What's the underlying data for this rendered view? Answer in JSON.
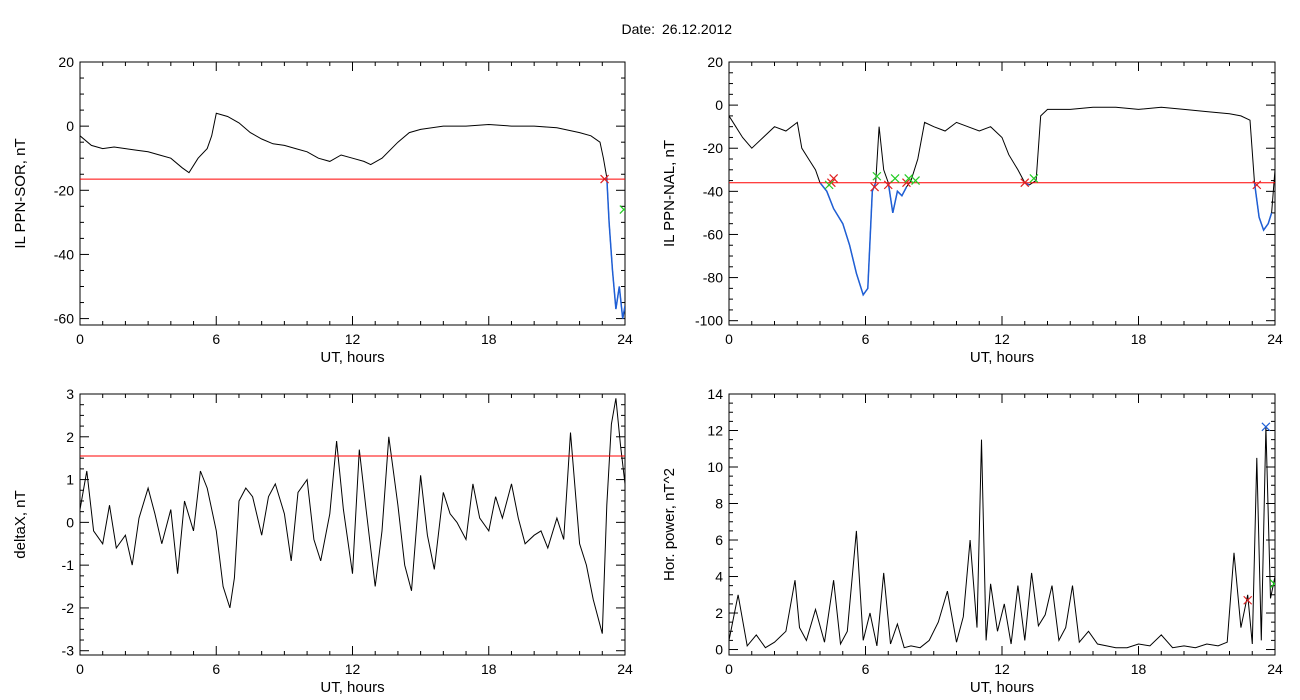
{
  "figure": {
    "title_prefix": "Date:",
    "date": "26.12.2012"
  },
  "colors": {
    "trace": "#000000",
    "threshold": "#ff0000",
    "highlight": "#1f5fd6",
    "marker_red": "#e02020",
    "marker_green": "#22cc22",
    "marker_blue": "#1f5fd6"
  },
  "chart_data": [
    {
      "type": "line",
      "id": "sor",
      "xlabel": "UT, hours",
      "ylabel": "IL PPN-SOR, nT",
      "xlim": [
        0,
        24
      ],
      "ylim": [
        -62,
        20
      ],
      "xticks": [
        0,
        6,
        12,
        18,
        24
      ],
      "yticks": [
        -60,
        -40,
        -20,
        0,
        20
      ],
      "threshold": -16.5,
      "grid": false,
      "series": [
        {
          "x": [
            0,
            0.5,
            1,
            1.5,
            2,
            2.5,
            3,
            3.5,
            4,
            4.5,
            4.8,
            5.2,
            5.6,
            5.8,
            6,
            6.5,
            7,
            7.5,
            8,
            8.5,
            9,
            9.5,
            10,
            10.5,
            11,
            11.5,
            12,
            12.5,
            12.8,
            13.3,
            14,
            14.5,
            15,
            16,
            17,
            18,
            19,
            20,
            21,
            22,
            22.5,
            22.9,
            23.05,
            23.2,
            23.3,
            23.45,
            23.6,
            23.75,
            23.9,
            24
          ],
          "y": [
            -3,
            -6,
            -7,
            -6.5,
            -7,
            -7.5,
            -8,
            -9,
            -10,
            -13,
            -14.5,
            -10,
            -7,
            -3,
            4,
            3,
            1,
            -2,
            -4,
            -5.5,
            -6,
            -7,
            -8,
            -10,
            -11,
            -9,
            -10,
            -11,
            -12,
            -10,
            -5,
            -2,
            -1,
            0,
            0,
            0.5,
            0,
            0,
            -0.5,
            -2,
            -3,
            -5,
            -10,
            -16,
            -30,
            -45,
            -57,
            -50,
            -60,
            -56
          ]
        }
      ],
      "highlight": {
        "x_from": 23.1,
        "x_to": 24
      },
      "markers": [
        {
          "x": 23.1,
          "y": -16.5,
          "color": "marker_red",
          "symbol": "x"
        },
        {
          "x": 23.95,
          "y": -26,
          "color": "marker_green",
          "symbol": "x"
        }
      ]
    },
    {
      "type": "line",
      "id": "nal",
      "xlabel": "UT, hours",
      "ylabel": "IL PPN-NAL, nT",
      "xlim": [
        0,
        24
      ],
      "ylim": [
        -102,
        20
      ],
      "xticks": [
        0,
        6,
        12,
        18,
        24
      ],
      "yticks": [
        -100,
        -80,
        -60,
        -40,
        -20,
        0,
        20
      ],
      "threshold": -36,
      "grid": false,
      "series": [
        {
          "x": [
            0,
            0.3,
            0.6,
            1,
            1.5,
            2,
            2.5,
            3,
            3.2,
            3.5,
            3.8,
            4,
            4.3,
            4.6,
            5,
            5.3,
            5.6,
            5.9,
            6.1,
            6.3,
            6.45,
            6.6,
            6.8,
            7,
            7.2,
            7.4,
            7.6,
            7.8,
            8,
            8.3,
            8.6,
            9,
            9.5,
            10,
            10.5,
            11,
            11.5,
            12,
            12.3,
            12.7,
            13,
            13.2,
            13.5,
            13.7,
            14,
            15,
            16,
            17,
            18,
            19,
            20,
            21,
            22,
            22.5,
            22.9,
            23.1,
            23.3,
            23.5,
            23.7,
            23.85,
            24
          ],
          "y": [
            -5,
            -10,
            -15,
            -20,
            -15,
            -10,
            -12,
            -8,
            -20,
            -25,
            -30,
            -36,
            -40,
            -48,
            -55,
            -65,
            -78,
            -88,
            -85,
            -40,
            -36,
            -10,
            -30,
            -36,
            -50,
            -40,
            -42,
            -38,
            -35,
            -25,
            -8,
            -10,
            -12,
            -8,
            -10,
            -12,
            -10,
            -15,
            -23,
            -30,
            -36,
            -37,
            -35,
            -5,
            -2,
            -2,
            -1,
            -1,
            -2,
            -1,
            -2,
            -3,
            -4,
            -5,
            -7,
            -36,
            -52,
            -58,
            -55,
            -50,
            -30
          ]
        }
      ],
      "highlight": {
        "x_from": 4.0,
        "x_to": 24,
        "only_below_threshold": true
      },
      "markers": [
        {
          "x": 4.5,
          "y": -36,
          "color": "marker_red",
          "symbol": "x"
        },
        {
          "x": 4.6,
          "y": -34,
          "color": "marker_red",
          "symbol": "x"
        },
        {
          "x": 4.4,
          "y": -37,
          "color": "marker_green",
          "symbol": "x"
        },
        {
          "x": 6.4,
          "y": -38,
          "color": "marker_red",
          "symbol": "x"
        },
        {
          "x": 6.5,
          "y": -33,
          "color": "marker_green",
          "symbol": "x"
        },
        {
          "x": 7.0,
          "y": -37,
          "color": "marker_red",
          "symbol": "x"
        },
        {
          "x": 7.3,
          "y": -34,
          "color": "marker_green",
          "symbol": "x"
        },
        {
          "x": 7.8,
          "y": -36,
          "color": "marker_red",
          "symbol": "x"
        },
        {
          "x": 7.9,
          "y": -34,
          "color": "marker_green",
          "symbol": "x"
        },
        {
          "x": 8.2,
          "y": -35,
          "color": "marker_green",
          "symbol": "x"
        },
        {
          "x": 13.0,
          "y": -36,
          "color": "marker_red",
          "symbol": "x"
        },
        {
          "x": 13.4,
          "y": -34,
          "color": "marker_green",
          "symbol": "x"
        },
        {
          "x": 23.2,
          "y": -37,
          "color": "marker_red",
          "symbol": "x"
        }
      ]
    },
    {
      "type": "line",
      "id": "deltax",
      "xlabel": "UT, hours",
      "ylabel": "deltaX, nT",
      "xlim": [
        0,
        24
      ],
      "ylim": [
        -3.1,
        3.0
      ],
      "xticks": [
        0,
        6,
        12,
        18,
        24
      ],
      "yticks": [
        -3,
        -2,
        -1,
        0,
        1,
        2,
        3
      ],
      "threshold": 1.55,
      "grid": false,
      "series": [
        {
          "x": [
            0,
            0.3,
            0.6,
            1,
            1.3,
            1.6,
            2,
            2.3,
            2.6,
            3,
            3.3,
            3.6,
            4,
            4.3,
            4.6,
            5,
            5.3,
            5.6,
            6,
            6.3,
            6.6,
            6.8,
            7,
            7.3,
            7.6,
            8,
            8.3,
            8.6,
            9,
            9.3,
            9.6,
            10,
            10.3,
            10.6,
            11,
            11.3,
            11.6,
            12,
            12.3,
            12.6,
            13,
            13.3,
            13.6,
            14,
            14.3,
            14.6,
            15,
            15.3,
            15.6,
            16,
            16.3,
            16.6,
            17,
            17.3,
            17.6,
            18,
            18.3,
            18.6,
            19,
            19.3,
            19.6,
            20,
            20.3,
            20.6,
            21,
            21.3,
            21.6,
            22,
            22.3,
            22.6,
            23,
            23.2,
            23.4,
            23.6,
            23.8,
            24
          ],
          "y": [
            0.3,
            1.2,
            -0.2,
            -0.5,
            0.4,
            -0.6,
            -0.3,
            -1.0,
            0.1,
            0.8,
            0.2,
            -0.5,
            0.3,
            -1.2,
            0.5,
            -0.2,
            1.2,
            0.8,
            -0.2,
            -1.5,
            -2.0,
            -1.3,
            0.5,
            0.8,
            0.6,
            -0.3,
            0.6,
            0.9,
            0.2,
            -0.9,
            0.7,
            1.0,
            -0.4,
            -0.9,
            0.2,
            1.9,
            0.3,
            -1.2,
            1.7,
            0.3,
            -1.5,
            -0.2,
            2.0,
            0.4,
            -1.0,
            -1.6,
            1.1,
            -0.3,
            -1.1,
            0.7,
            0.2,
            0.0,
            -0.4,
            0.9,
            0.1,
            -0.2,
            0.6,
            0.1,
            0.9,
            0.1,
            -0.5,
            -0.3,
            -0.2,
            -0.6,
            0.1,
            -0.4,
            2.1,
            -0.5,
            -1.0,
            -1.8,
            -2.6,
            0.4,
            2.3,
            2.9,
            1.8,
            0.9
          ]
        }
      ],
      "markers": []
    },
    {
      "type": "line",
      "id": "power",
      "xlabel": "UT, hours",
      "ylabel": "Hor. power, nT^2",
      "xlim": [
        0,
        24
      ],
      "ylim": [
        -0.3,
        14
      ],
      "xticks": [
        0,
        6,
        12,
        18,
        24
      ],
      "yticks": [
        0,
        2,
        4,
        6,
        8,
        10,
        12,
        14
      ],
      "grid": false,
      "series": [
        {
          "x": [
            0,
            0.4,
            0.8,
            1.2,
            1.6,
            2,
            2.5,
            2.9,
            3.1,
            3.4,
            3.8,
            4.2,
            4.6,
            4.9,
            5.2,
            5.6,
            5.9,
            6.2,
            6.5,
            6.8,
            7.1,
            7.4,
            7.7,
            8,
            8.4,
            8.8,
            9.2,
            9.6,
            10,
            10.3,
            10.6,
            10.9,
            11.1,
            11.3,
            11.5,
            11.8,
            12.1,
            12.4,
            12.7,
            13,
            13.3,
            13.6,
            13.9,
            14.2,
            14.5,
            14.8,
            15.1,
            15.4,
            15.8,
            16.2,
            16.6,
            17,
            17.5,
            18,
            18.5,
            19,
            19.5,
            20,
            20.5,
            21,
            21.5,
            21.9,
            22.2,
            22.5,
            22.8,
            23.0,
            23.2,
            23.4,
            23.6,
            23.8,
            24
          ],
          "y": [
            0.5,
            3.0,
            0.2,
            0.8,
            0.1,
            0.4,
            1.0,
            3.8,
            1.2,
            0.5,
            2.2,
            0.4,
            3.8,
            0.3,
            1.0,
            6.5,
            0.5,
            2.0,
            0.2,
            4.2,
            0.3,
            1.4,
            0.1,
            0.2,
            0.1,
            0.5,
            1.5,
            3.2,
            0.4,
            1.8,
            6.0,
            1.2,
            11.5,
            0.5,
            3.6,
            1.0,
            2.5,
            0.3,
            3.5,
            0.5,
            4.2,
            1.3,
            1.9,
            3.5,
            0.5,
            1.2,
            3.5,
            0.4,
            1.0,
            0.3,
            0.2,
            0.1,
            0.1,
            0.3,
            0.2,
            0.8,
            0.1,
            0.2,
            0.1,
            0.3,
            0.2,
            0.4,
            5.3,
            1.2,
            3.0,
            0.3,
            10.5,
            0.5,
            12.2,
            2.8,
            4.0
          ]
        }
      ],
      "markers": [
        {
          "x": 22.8,
          "y": 2.7,
          "color": "marker_red",
          "symbol": "x"
        },
        {
          "x": 23.6,
          "y": 12.2,
          "color": "marker_blue",
          "symbol": "x"
        },
        {
          "x": 23.97,
          "y": 3.6,
          "color": "marker_green",
          "symbol": "x"
        }
      ]
    }
  ]
}
